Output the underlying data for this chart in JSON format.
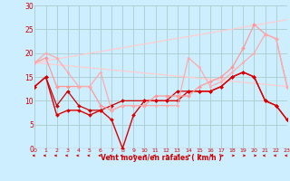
{
  "xlabel": "Vent moyen/en rafales ( km/h )",
  "bg_color": "#cceeff",
  "grid_color": "#aacccc",
  "x_ticks": [
    0,
    1,
    2,
    3,
    4,
    5,
    6,
    7,
    8,
    9,
    10,
    11,
    12,
    13,
    14,
    15,
    16,
    17,
    18,
    19,
    20,
    21,
    22,
    23
  ],
  "y_ticks": [
    0,
    5,
    10,
    15,
    20,
    25,
    30
  ],
  "ylim": [
    0,
    30
  ],
  "xlim": [
    0,
    23
  ],
  "series": [
    {
      "x": [
        0,
        1,
        2,
        3,
        4,
        5,
        6,
        7,
        8,
        10,
        11,
        12,
        13,
        14,
        15,
        16,
        17,
        18,
        19,
        20,
        21,
        22,
        23
      ],
      "y": [
        13,
        15,
        9,
        12,
        9,
        8,
        8,
        9,
        10,
        10,
        10,
        10,
        12,
        12,
        12,
        12,
        13,
        15,
        16,
        15,
        10,
        9,
        6
      ],
      "color": "#cc0000",
      "lw": 0.9,
      "marker": "D",
      "ms": 2.0
    },
    {
      "x": [
        0,
        1,
        2,
        3,
        4,
        5,
        6,
        7,
        8,
        9,
        10,
        11,
        12,
        13,
        14,
        15,
        16,
        17,
        18,
        19,
        20,
        21,
        22,
        23
      ],
      "y": [
        13,
        15,
        7,
        8,
        8,
        7,
        8,
        6,
        0,
        7,
        10,
        10,
        10,
        10,
        12,
        12,
        12,
        13,
        15,
        16,
        15,
        10,
        9,
        6
      ],
      "color": "#dd0000",
      "lw": 1.0,
      "marker": "D",
      "ms": 2.0
    },
    {
      "x": [
        0,
        1,
        2,
        3,
        4,
        5,
        6,
        7,
        8,
        9,
        10,
        11,
        12,
        13,
        14,
        15,
        16,
        17,
        18,
        19,
        20,
        21,
        22,
        23
      ],
      "y": [
        18,
        19,
        13,
        13,
        13,
        13,
        9,
        8,
        9,
        9,
        9,
        11,
        11,
        11,
        11,
        13,
        14,
        15,
        17,
        21,
        26,
        24,
        23,
        13
      ],
      "color": "#ff9999",
      "lw": 0.9,
      "marker": "D",
      "ms": 2.0
    },
    {
      "x": [
        0,
        1,
        2,
        3,
        4,
        5,
        6,
        7,
        8,
        9,
        10,
        11,
        12,
        13,
        14,
        15,
        16,
        17,
        18,
        19,
        20,
        21,
        22,
        23
      ],
      "y": [
        18,
        20,
        19,
        16,
        13,
        13,
        16,
        8,
        9,
        9,
        9,
        9,
        9,
        9,
        19,
        17,
        13,
        14,
        16,
        18,
        20,
        24,
        23,
        13
      ],
      "color": "#ffaaaa",
      "lw": 0.9,
      "marker": "D",
      "ms": 1.5
    },
    {
      "x": [
        0,
        23
      ],
      "y": [
        18,
        27
      ],
      "color": "#ffcccc",
      "lw": 0.9,
      "marker": null,
      "ms": 0
    },
    {
      "x": [
        0,
        23
      ],
      "y": [
        18,
        13
      ],
      "color": "#ffcccc",
      "lw": 0.9,
      "marker": null,
      "ms": 0
    }
  ],
  "wind_arrows": {
    "x": [
      0,
      1,
      2,
      3,
      4,
      5,
      6,
      7,
      8,
      9,
      10,
      11,
      12,
      13,
      14,
      15,
      16,
      17,
      18,
      19,
      20,
      21,
      22,
      23
    ],
    "go_right": [
      0,
      0,
      0,
      0,
      0,
      0,
      0,
      0,
      0,
      1,
      1,
      0,
      1,
      1,
      1,
      1,
      1,
      1,
      1,
      1,
      1,
      0,
      0,
      0
    ]
  }
}
